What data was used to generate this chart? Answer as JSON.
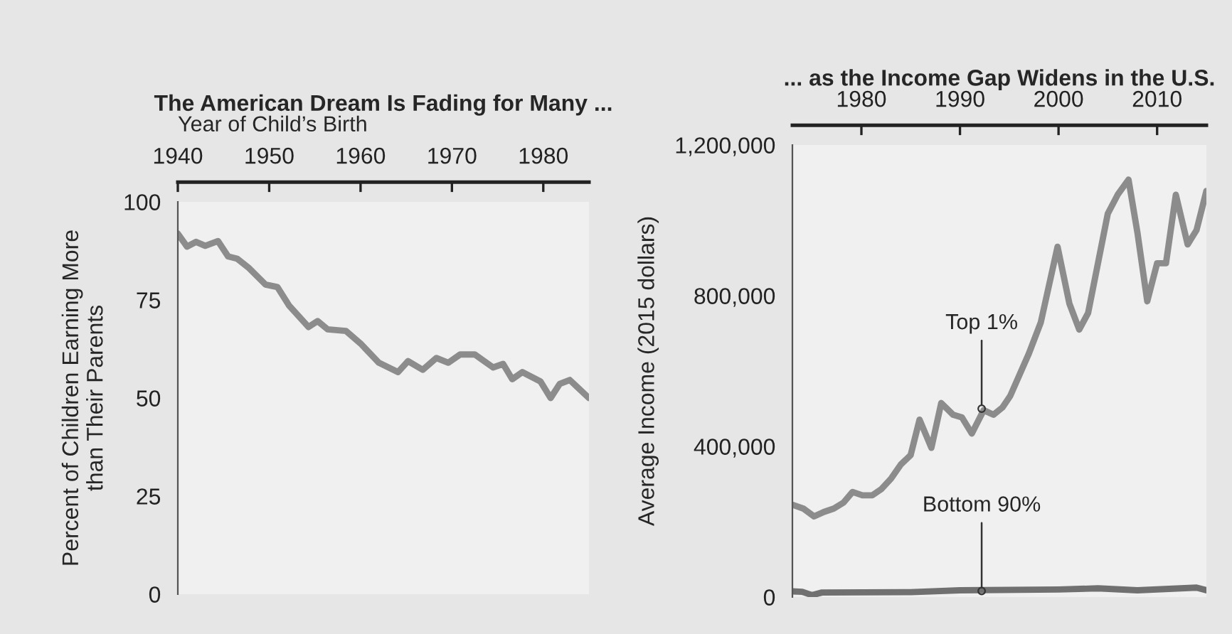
{
  "chart_data": [
    {
      "type": "line",
      "title": "The American Dream Is Fading for Many ...",
      "xlabel": "Year of Child’s Birth",
      "ylabel": "Percent of Children Earning More\nthan Their Parents",
      "xlim": [
        1940,
        1985
      ],
      "xticks": [
        1940,
        1950,
        1960,
        1970,
        1980
      ],
      "ylim": [
        0,
        100
      ],
      "yticks": [
        0,
        25,
        50,
        75,
        100
      ],
      "grid": false,
      "legend": false,
      "x": [
        1940,
        1941,
        1942,
        1943,
        1944.4,
        1945.5,
        1946.5,
        1947.8,
        1949.6,
        1950.9,
        1952.2,
        1954.3,
        1955.3,
        1956.4,
        1958.4,
        1960,
        1962,
        1964.1,
        1965.2,
        1966.8,
        1968.3,
        1969.6,
        1970.9,
        1972.5,
        1974.5,
        1975.6,
        1976.6,
        1977.7,
        1979.7,
        1980.8,
        1981.8,
        1982.9,
        1983.9,
        1985
      ],
      "series": [
        {
          "color": "#8c8c8c",
          "values": [
            91.9,
            88.6,
            89.8,
            88.8,
            90,
            86.1,
            85.5,
            83.1,
            78.9,
            78.3,
            73.5,
            68.1,
            69.6,
            67.5,
            67.1,
            63.9,
            59,
            56.6,
            59.4,
            57.2,
            60.2,
            59,
            61.1,
            61.1,
            57.8,
            58.7,
            54.8,
            56.6,
            54.2,
            50,
            53.6,
            54.6,
            52.4,
            50
          ]
        }
      ]
    },
    {
      "type": "line",
      "title": "... as the Income Gap Widens in the U.S.",
      "ylabel": "Average Income (2015 dollars)",
      "xlim": [
        1973,
        2015
      ],
      "xticks": [
        1980,
        1990,
        2000,
        2010
      ],
      "ylim": [
        0,
        1200000
      ],
      "yticks": [
        {
          "value": 0,
          "label": "0"
        },
        {
          "value": 400000,
          "label": "400,000"
        },
        {
          "value": 800000,
          "label": "800,000"
        },
        {
          "value": 1200000,
          "label": "1,200,000"
        }
      ],
      "grid": false,
      "legend": false,
      "annotations": [
        {
          "text": "Top 1%",
          "x": 1992.2,
          "y": 500000
        },
        {
          "text": "Bottom 90%",
          "x": 1992.2,
          "y": 16000
        }
      ],
      "series": [
        {
          "color": "#8c8c8c",
          "x": [
            1973,
            1974.1,
            1975.2,
            1976.2,
            1977.2,
            1978.2,
            1979.1,
            1980.1,
            1981.1,
            1982,
            1983,
            1984,
            1985,
            1985.9,
            1987.1,
            1988.1,
            1989.3,
            1990.2,
            1991.2,
            1992.4,
            1993.4,
            1994.3,
            1995.1,
            1997,
            1998.2,
            1999.9,
            2001.1,
            2002.1,
            2003,
            2005,
            2006,
            2007.1,
            2008,
            2009,
            2010,
            2010.9,
            2011.9,
            2013.1,
            2014,
            2015
          ],
          "values": [
            245000,
            235000,
            214000,
            226000,
            235000,
            251000,
            279000,
            270000,
            270000,
            286000,
            314000,
            352000,
            377000,
            471000,
            396000,
            515000,
            484000,
            477000,
            434000,
            496000,
            484000,
            503000,
            534000,
            647000,
            729000,
            930000,
            779000,
            710000,
            754000,
            1018000,
            1068000,
            1108000,
            968000,
            785000,
            886000,
            886000,
            1068000,
            936000,
            974000,
            1078000
          ]
        },
        {
          "color": "#707070",
          "x": [
            1973,
            1974,
            1975,
            1976,
            1985,
            1990,
            2000,
            2004,
            2008,
            2014,
            2015
          ],
          "values": [
            15000,
            14000,
            5000,
            12000,
            13000,
            18000,
            20000,
            23000,
            18000,
            25000,
            18000
          ]
        }
      ]
    }
  ]
}
